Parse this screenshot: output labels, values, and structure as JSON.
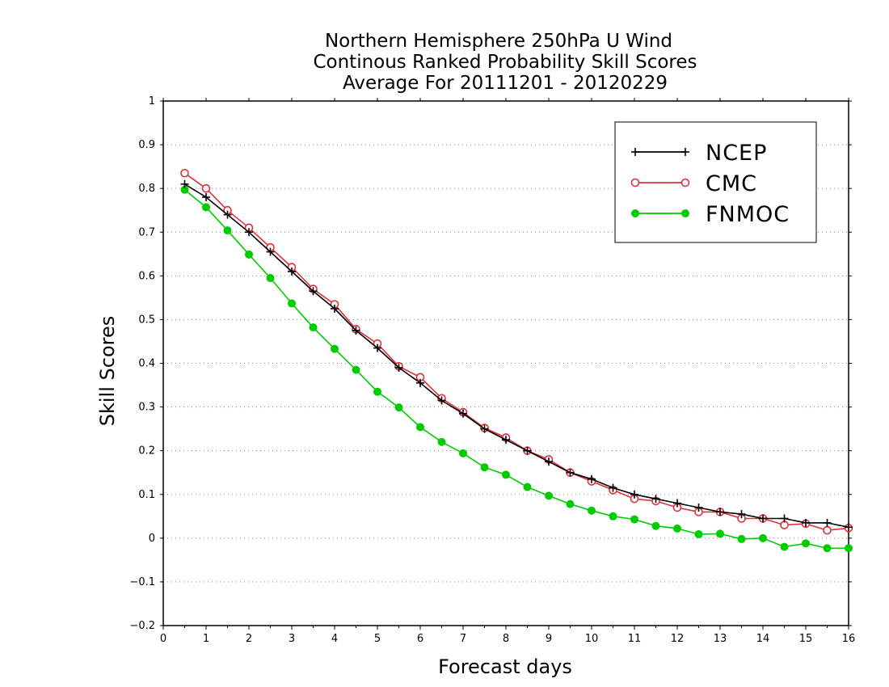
{
  "chart_data": {
    "type": "line",
    "title_lines": [
      "Northern Hemisphere 250hPa U Wind",
      "Continous Ranked Probability Skill Scores",
      "Average For 20111201 - 20120229"
    ],
    "xlabel": "Forecast days",
    "ylabel": "Skill Scores",
    "xlim": [
      0,
      16
    ],
    "ylim": [
      -0.2,
      1
    ],
    "x_ticks": [
      "0",
      "1",
      "2",
      "3",
      "4",
      "5",
      "6",
      "7",
      "8",
      "9",
      "10",
      "11",
      "12",
      "13",
      "14",
      "15",
      "16"
    ],
    "y_ticks": [
      "−0.2",
      "−0.1",
      "0",
      "0.1",
      "0.2",
      "0.3",
      "0.4",
      "0.5",
      "0.6",
      "0.7",
      "0.8",
      "0.9",
      "1"
    ],
    "grid": "horizontal dotted",
    "legend_position": "top-right",
    "x": [
      0.5,
      1,
      1.5,
      2,
      2.5,
      3,
      3.5,
      4,
      4.5,
      5,
      5.5,
      6,
      6.5,
      7,
      7.5,
      8,
      8.5,
      9,
      9.5,
      10,
      10.5,
      11,
      11.5,
      12,
      12.5,
      13,
      13.5,
      14,
      14.5,
      15,
      15.5,
      16
    ],
    "series": [
      {
        "name": "NCEP",
        "color": "#000000",
        "marker": "plus",
        "values": [
          0.81,
          0.78,
          0.74,
          0.7,
          0.655,
          0.61,
          0.565,
          0.525,
          0.475,
          0.435,
          0.39,
          0.355,
          0.315,
          0.285,
          0.25,
          0.225,
          0.2,
          0.175,
          0.15,
          0.135,
          0.115,
          0.1,
          0.09,
          0.08,
          0.07,
          0.06,
          0.055,
          0.045,
          0.045,
          0.035,
          0.035,
          0.025
        ]
      },
      {
        "name": "CMC",
        "color": "#e0303a",
        "marker": "open-circle",
        "values": [
          0.835,
          0.8,
          0.75,
          0.71,
          0.665,
          0.62,
          0.57,
          0.535,
          0.478,
          0.445,
          0.393,
          0.368,
          0.32,
          0.288,
          0.252,
          0.23,
          0.2,
          0.18,
          0.15,
          0.13,
          0.11,
          0.09,
          0.085,
          0.07,
          0.06,
          0.06,
          0.045,
          0.045,
          0.03,
          0.033,
          0.018,
          0.023
        ]
      },
      {
        "name": "FNMOC",
        "color": "#00cc00",
        "marker": "filled-circle",
        "values": [
          0.797,
          0.757,
          0.704,
          0.649,
          0.595,
          0.537,
          0.482,
          0.433,
          0.385,
          0.335,
          0.299,
          0.254,
          0.22,
          0.194,
          0.162,
          0.145,
          0.117,
          0.097,
          0.078,
          0.063,
          0.05,
          0.043,
          0.028,
          0.022,
          0.009,
          0.01,
          -0.002,
          0.0,
          -0.02,
          -0.012,
          -0.023,
          -0.023
        ]
      }
    ]
  }
}
